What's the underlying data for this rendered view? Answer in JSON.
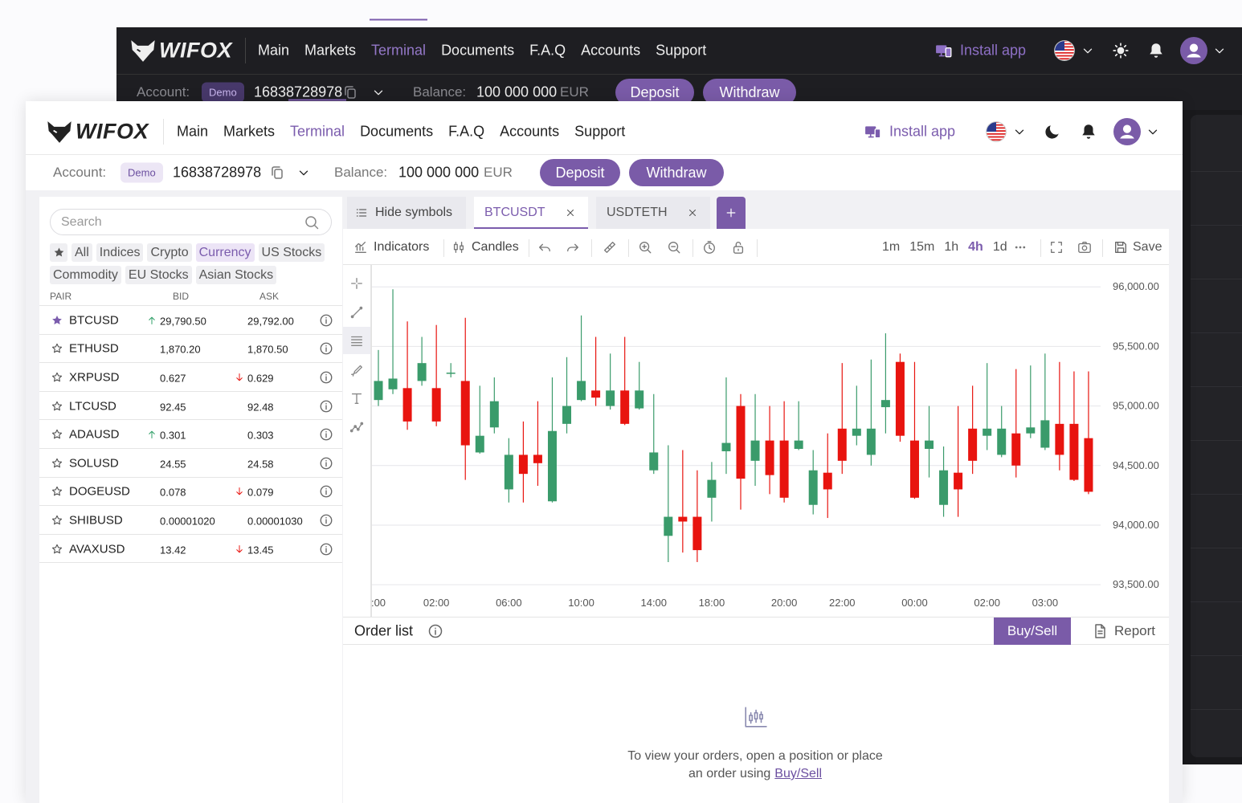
{
  "back_window": {
    "header": {
      "logo": "WIFOX",
      "nav": [
        "Main",
        "Markets",
        "Terminal",
        "Documents",
        "F.A.Q",
        "Accounts",
        "Support"
      ],
      "active_nav": 2,
      "install_app": "Install app"
    },
    "account_bar": {
      "account_label": "Account:",
      "account_type": "Demo",
      "account_number": "16838728978",
      "balance_label": "Balance:",
      "balance": "100 000 000",
      "currency": "EUR",
      "deposit": "Deposit",
      "withdraw": "Withdraw"
    }
  },
  "window": {
    "header": {
      "logo": "WIFOX",
      "nav": [
        "Main",
        "Markets",
        "Terminal",
        "Documents",
        "F.A.Q",
        "Accounts",
        "Support"
      ],
      "active_nav": 2,
      "install_app": "Install app"
    },
    "account_bar": {
      "account_label": "Account:",
      "account_type": "Demo",
      "account_number": "16838728978",
      "balance_label": "Balance:",
      "balance": "100 000 000",
      "currency": "EUR",
      "deposit": "Deposit",
      "withdraw": "Withdraw"
    },
    "sidebar": {
      "search_placeholder": "Search",
      "filters": [
        "All",
        "Indices",
        "Crypto",
        "Currency",
        "US Stocks",
        "Commodity",
        "EU Stocks",
        "Asian Stocks"
      ],
      "active_filter": 3,
      "columns": [
        "PAIR",
        "BID",
        "ASK"
      ],
      "rows": [
        {
          "pair": "BTCUSD",
          "bid": "29,790.50",
          "ask": "29,792.00",
          "starred": true,
          "bid_trend": "up"
        },
        {
          "pair": "ETHUSD",
          "bid": "1,870.20",
          "ask": "1,870.50",
          "starred": false
        },
        {
          "pair": "XRPUSD",
          "bid": "0.627",
          "ask": "0.629",
          "starred": false,
          "ask_trend": "down"
        },
        {
          "pair": "LTCUSD",
          "bid": "92.45",
          "ask": "92.48",
          "starred": false
        },
        {
          "pair": "ADAUSD",
          "bid": "0.301",
          "ask": "0.303",
          "starred": false,
          "bid_trend": "up"
        },
        {
          "pair": "SOLUSD",
          "bid": "24.55",
          "ask": "24.58",
          "starred": false
        },
        {
          "pair": "DOGEUSD",
          "bid": "0.078",
          "ask": "0.079",
          "starred": false,
          "ask_trend": "down"
        },
        {
          "pair": "SHIBUSD",
          "bid": "0.00001020",
          "ask": "0.00001030",
          "starred": false
        },
        {
          "pair": "AVAXUSD",
          "bid": "13.42",
          "ask": "13.45",
          "starred": false,
          "ask_trend": "down"
        }
      ]
    },
    "tabs": {
      "hide_symbols": "Hide symbols",
      "items": [
        "BTCUSDT",
        "USDTETH"
      ],
      "active": 0
    },
    "toolbar": {
      "indicators": "Indicators",
      "candles": "Candles",
      "intervals": [
        "1m",
        "15m",
        "1h",
        "4h",
        "1d"
      ],
      "active_interval": 3,
      "save": "Save"
    },
    "order_list": {
      "title": "Order list",
      "buy_sell": "Buy/Sell",
      "report": "Report",
      "empty_text_1": "To view your orders, open a position or place",
      "empty_text_2": "an order using",
      "empty_link": "Buy/Sell"
    }
  },
  "chart_data": {
    "type": "candlestick",
    "categories": [
      ":00",
      null,
      null,
      null,
      "02:00",
      null,
      null,
      null,
      null,
      "06:00",
      null,
      null,
      null,
      null,
      "10:00",
      null,
      null,
      null,
      null,
      "14:00",
      null,
      null,
      null,
      "18:00",
      null,
      null,
      null,
      null,
      "20:00",
      null,
      null,
      null,
      "22:00",
      null,
      null,
      null,
      null,
      "00:00",
      null,
      null,
      null,
      null,
      "02:00",
      null,
      null,
      null,
      "03:00",
      null,
      null,
      null
    ],
    "open": [
      95050,
      95140,
      95150,
      95210,
      95150,
      95270,
      95210,
      94610,
      94820,
      94300,
      94590,
      94590,
      94200,
      94850,
      95050,
      95130,
      95000,
      95130,
      94980,
      94460,
      93910,
      94070,
      94070,
      94230,
      94620,
      95000,
      94540,
      94710,
      94710,
      94640,
      94170,
      94440,
      94810,
      94750,
      94590,
      94990,
      95370,
      94710,
      94640,
      94170,
      94440,
      94810,
      94750,
      94590,
      94770,
      94770,
      94650,
      94850,
      94850,
      94730
    ],
    "high": [
      95470,
      95980,
      95710,
      95580,
      95680,
      95360,
      95740,
      95170,
      95240,
      94730,
      94870,
      95040,
      95240,
      95410,
      95760,
      95580,
      95440,
      95580,
      95370,
      95100,
      94670,
      94630,
      94460,
      94530,
      95240,
      95100,
      95100,
      95000,
      95040,
      95040,
      94630,
      94770,
      95360,
      95170,
      95390,
      95610,
      95440,
      95370,
      95000,
      94660,
      95000,
      95170,
      95360,
      95000,
      95310,
      95340,
      95440,
      95370,
      95290,
      95290
    ],
    "low": [
      95000,
      95100,
      94800,
      95170,
      94830,
      95240,
      94380,
      94600,
      94770,
      94190,
      94190,
      94330,
      94190,
      94770,
      95040,
      95000,
      94970,
      94840,
      94970,
      94430,
      93690,
      93770,
      93690,
      94030,
      94430,
      94130,
      94330,
      94260,
      94190,
      94630,
      94090,
      94060,
      94430,
      94670,
      94500,
      94770,
      94700,
      94220,
      94400,
      94070,
      94070,
      94430,
      94630,
      94570,
      94400,
      94730,
      94630,
      94460,
      94370,
      94260
    ],
    "close": [
      95210,
      95230,
      94870,
      95360,
      94870,
      95280,
      94670,
      94750,
      95040,
      94590,
      94430,
      94520,
      94790,
      95000,
      95210,
      95070,
      95130,
      94850,
      95130,
      94610,
      94070,
      94030,
      93790,
      94380,
      94690,
      94390,
      94710,
      94420,
      94230,
      94710,
      94460,
      94300,
      94540,
      94810,
      94810,
      95050,
      94750,
      94230,
      94710,
      94460,
      94300,
      94540,
      94810,
      94810,
      94500,
      94820,
      94880,
      94590,
      94380,
      94280
    ],
    "up_color": "#3a9b6b",
    "down_color": "#e8140f",
    "ylim": [
      93420,
      96170
    ],
    "yticks": [
      {
        "value": 93500,
        "label": "93,500.00"
      },
      {
        "value": 94000,
        "label": "94,000.00"
      },
      {
        "value": 94500,
        "label": "94,500.00"
      },
      {
        "value": 95000,
        "label": "95,000.00"
      },
      {
        "value": 95500,
        "label": "95,500.00"
      },
      {
        "value": 96000,
        "label": "96,000.00"
      }
    ],
    "grid": true
  }
}
